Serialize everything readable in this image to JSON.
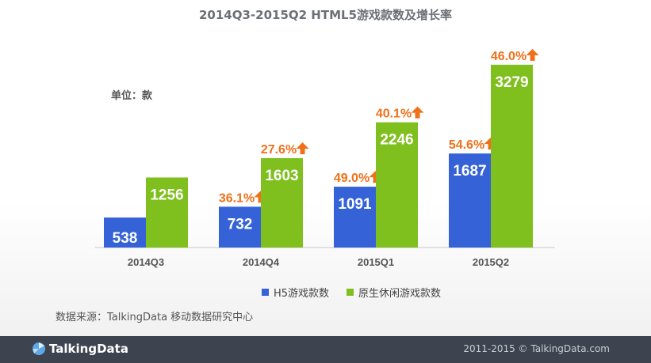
{
  "title": "2014Q3-2015Q2 HTML5游戏款数及增长率",
  "unit_label": "单位：款",
  "source": "数据来源：TalkingData 移动数据研究中心",
  "footer": {
    "logo_text": "TalkingData",
    "copyright": "2011-2015 © TalkingData.com"
  },
  "colors": {
    "h5": "#3562d6",
    "native": "#7fbf1e",
    "growth": "#f07019",
    "axis": "#c8c8c8",
    "footer_bg": "#3d4450"
  },
  "chart_data": {
    "type": "bar",
    "categories": [
      "2014Q3",
      "2014Q4",
      "2015Q1",
      "2015Q2"
    ],
    "series": [
      {
        "name": "H5游戏款数",
        "values": [
          538,
          732,
          1091,
          1687
        ],
        "growth": [
          null,
          "36.1%",
          "49.0%",
          "54.6%"
        ]
      },
      {
        "name": "原生休闲游戏款数",
        "values": [
          1256,
          1603,
          2246,
          3279
        ],
        "growth": [
          null,
          "27.6%",
          "40.1%",
          "46.0%"
        ]
      }
    ],
    "legend_position": "bottom",
    "grid": false
  }
}
